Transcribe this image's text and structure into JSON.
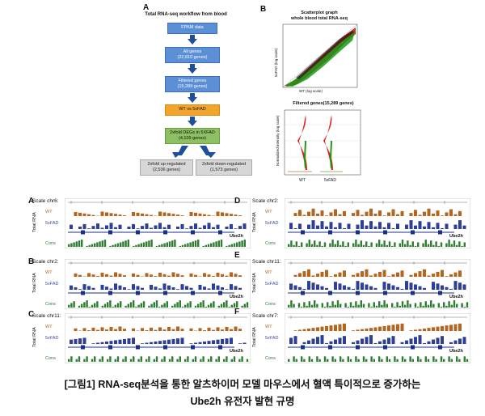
{
  "panel_a_label": "A",
  "panel_b_label": "B",
  "workflow": {
    "title": "Total RNA-seq workflow from blood",
    "steps": [
      {
        "text": "FPKM data"
      },
      {
        "text": "All genes",
        "sub": "(22,810 genes)"
      },
      {
        "text": "Filtered genes",
        "sub": "(15,289 genes)"
      },
      {
        "text": "WT vs 5xFAD"
      },
      {
        "text": "2xfold DEGs in 5XFAD",
        "sub": "(4,109 genes)"
      }
    ],
    "up": {
      "text": "2xfold up-regulated",
      "sub": "(2,536 genes)"
    },
    "down": {
      "text": "2xfold down-regulated",
      "sub": "(1,573 genes)"
    }
  },
  "scatter": {
    "title": "Scatterplot graph",
    "subtitle": "whole blood total RNA-seq",
    "xlabel": "WT (log scale)",
    "ylabel": "5xFAD (log scale)"
  },
  "violin": {
    "title": "Filtered genes(15,289 genes)",
    "ylabel": "Normalized intensity (log scale)",
    "categories": [
      "WT",
      "5xFAD"
    ]
  },
  "tracks": [
    {
      "id": "A",
      "scale": "Scale chr6:",
      "gene": "Ube2h"
    },
    {
      "id": "B",
      "scale": "Scale chr2:",
      "gene": "Ube2h"
    },
    {
      "id": "C",
      "scale": "Scale chr11:",
      "gene": "Ube2h"
    },
    {
      "id": "D",
      "scale": "Scale chr2:",
      "gene": "Ube2h"
    },
    {
      "id": "E",
      "scale": "Scale chr11:",
      "gene": "Ube2h"
    },
    {
      "id": "F",
      "scale": "Scale chr7:",
      "gene": "Ube2h"
    }
  ],
  "track_labels": {
    "wt": "WT",
    "fad": "5xFAD",
    "cons": "Cons",
    "side": "Total RNA"
  },
  "caption": {
    "line1": "[그림1] RNA-seq분석을 통한 알츠하이머 모델 마우스에서 혈액 특이적으로 증가하는",
    "line2": "Ube2h 유전자 발현 규명"
  },
  "colors": {
    "wt": "#b5651d",
    "fad": "#2e3f99",
    "cons": "#2e7d32",
    "blue_box": "#5b8fd6",
    "orange_box": "#f2a52a",
    "green_box": "#8cc062"
  }
}
